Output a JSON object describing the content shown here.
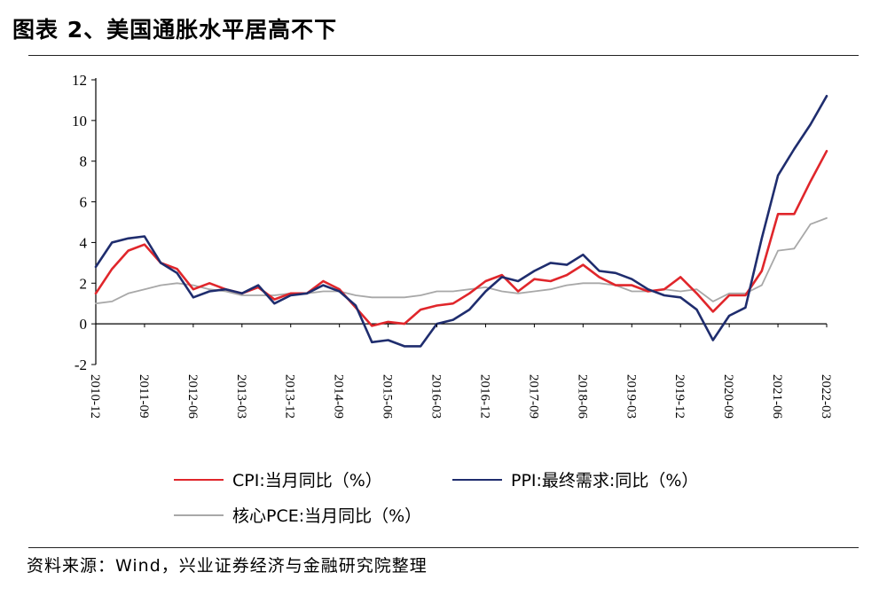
{
  "header": {
    "title": "图表 2、美国通胀水平居高不下"
  },
  "footer": {
    "source": "资料来源：Wind，兴业证券经济与金融研究院整理"
  },
  "chart_data": {
    "type": "line",
    "title": "图表 2、美国通胀水平居高不下",
    "xlabel": "",
    "ylabel": "",
    "ylim": [
      -2,
      12
    ],
    "yticks": [
      -2,
      0,
      2,
      4,
      6,
      8,
      10,
      12
    ],
    "x_start": "2010-12",
    "x_end": "2022-03",
    "x_tick_labels": [
      "2010-12",
      "2011-09",
      "2012-06",
      "2013-03",
      "2013-12",
      "2014-09",
      "2015-06",
      "2016-03",
      "2016-12",
      "2017-09",
      "2018-06",
      "2019-03",
      "2019-12",
      "2020-09",
      "2021-06",
      "2022-03"
    ],
    "legend_position": "bottom",
    "colors": {
      "CPI": "#e0262b",
      "PPI": "#1f2d6e",
      "PCE": "#a8a8a8"
    },
    "series": [
      {
        "name": "CPI:当月同比（%）",
        "key": "CPI",
        "points": [
          [
            "2010-12",
            1.5
          ],
          [
            "2011-03",
            2.7
          ],
          [
            "2011-06",
            3.6
          ],
          [
            "2011-09",
            3.9
          ],
          [
            "2011-12",
            3.0
          ],
          [
            "2012-03",
            2.7
          ],
          [
            "2012-06",
            1.7
          ],
          [
            "2012-09",
            2.0
          ],
          [
            "2012-12",
            1.7
          ],
          [
            "2013-03",
            1.5
          ],
          [
            "2013-06",
            1.8
          ],
          [
            "2013-09",
            1.2
          ],
          [
            "2013-12",
            1.5
          ],
          [
            "2014-03",
            1.5
          ],
          [
            "2014-06",
            2.1
          ],
          [
            "2014-09",
            1.7
          ],
          [
            "2014-12",
            0.8
          ],
          [
            "2015-03",
            -0.1
          ],
          [
            "2015-06",
            0.1
          ],
          [
            "2015-09",
            0.0
          ],
          [
            "2015-12",
            0.7
          ],
          [
            "2016-03",
            0.9
          ],
          [
            "2016-06",
            1.0
          ],
          [
            "2016-09",
            1.5
          ],
          [
            "2016-12",
            2.1
          ],
          [
            "2017-03",
            2.4
          ],
          [
            "2017-06",
            1.6
          ],
          [
            "2017-09",
            2.2
          ],
          [
            "2017-12",
            2.1
          ],
          [
            "2018-03",
            2.4
          ],
          [
            "2018-06",
            2.9
          ],
          [
            "2018-09",
            2.3
          ],
          [
            "2018-12",
            1.9
          ],
          [
            "2019-03",
            1.9
          ],
          [
            "2019-06",
            1.6
          ],
          [
            "2019-09",
            1.7
          ],
          [
            "2019-12",
            2.3
          ],
          [
            "2020-03",
            1.5
          ],
          [
            "2020-06",
            0.6
          ],
          [
            "2020-09",
            1.4
          ],
          [
            "2020-12",
            1.4
          ],
          [
            "2021-03",
            2.6
          ],
          [
            "2021-06",
            5.4
          ],
          [
            "2021-09",
            5.4
          ],
          [
            "2021-12",
            7.0
          ],
          [
            "2022-03",
            8.5
          ]
        ]
      },
      {
        "name": "PPI:最终需求:同比（%）",
        "key": "PPI",
        "points": [
          [
            "2010-12",
            2.8
          ],
          [
            "2011-03",
            4.0
          ],
          [
            "2011-06",
            4.2
          ],
          [
            "2011-09",
            4.3
          ],
          [
            "2011-12",
            3.0
          ],
          [
            "2012-03",
            2.5
          ],
          [
            "2012-06",
            1.3
          ],
          [
            "2012-09",
            1.6
          ],
          [
            "2012-12",
            1.7
          ],
          [
            "2013-03",
            1.5
          ],
          [
            "2013-06",
            1.9
          ],
          [
            "2013-09",
            1.0
          ],
          [
            "2013-12",
            1.4
          ],
          [
            "2014-03",
            1.5
          ],
          [
            "2014-06",
            1.9
          ],
          [
            "2014-09",
            1.6
          ],
          [
            "2014-12",
            0.9
          ],
          [
            "2015-03",
            -0.9
          ],
          [
            "2015-06",
            -0.8
          ],
          [
            "2015-09",
            -1.1
          ],
          [
            "2015-12",
            -1.1
          ],
          [
            "2016-03",
            0.0
          ],
          [
            "2016-06",
            0.2
          ],
          [
            "2016-09",
            0.7
          ],
          [
            "2016-12",
            1.6
          ],
          [
            "2017-03",
            2.3
          ],
          [
            "2017-06",
            2.1
          ],
          [
            "2017-09",
            2.6
          ],
          [
            "2017-12",
            3.0
          ],
          [
            "2018-03",
            2.9
          ],
          [
            "2018-06",
            3.4
          ],
          [
            "2018-09",
            2.6
          ],
          [
            "2018-12",
            2.5
          ],
          [
            "2019-03",
            2.2
          ],
          [
            "2019-06",
            1.7
          ],
          [
            "2019-09",
            1.4
          ],
          [
            "2019-12",
            1.3
          ],
          [
            "2020-03",
            0.7
          ],
          [
            "2020-06",
            -0.8
          ],
          [
            "2020-09",
            0.4
          ],
          [
            "2020-12",
            0.8
          ],
          [
            "2021-03",
            4.2
          ],
          [
            "2021-06",
            7.3
          ],
          [
            "2021-09",
            8.6
          ],
          [
            "2021-12",
            9.8
          ],
          [
            "2022-03",
            11.2
          ]
        ]
      },
      {
        "name": "核心PCE:当月同比（%）",
        "key": "PCE",
        "points": [
          [
            "2010-12",
            1.0
          ],
          [
            "2011-03",
            1.1
          ],
          [
            "2011-06",
            1.5
          ],
          [
            "2011-09",
            1.7
          ],
          [
            "2011-12",
            1.9
          ],
          [
            "2012-03",
            2.0
          ],
          [
            "2012-06",
            1.9
          ],
          [
            "2012-09",
            1.7
          ],
          [
            "2012-12",
            1.6
          ],
          [
            "2013-03",
            1.4
          ],
          [
            "2013-06",
            1.4
          ],
          [
            "2013-09",
            1.4
          ],
          [
            "2013-12",
            1.5
          ],
          [
            "2014-03",
            1.5
          ],
          [
            "2014-06",
            1.6
          ],
          [
            "2014-09",
            1.6
          ],
          [
            "2014-12",
            1.4
          ],
          [
            "2015-03",
            1.3
          ],
          [
            "2015-06",
            1.3
          ],
          [
            "2015-09",
            1.3
          ],
          [
            "2015-12",
            1.4
          ],
          [
            "2016-03",
            1.6
          ],
          [
            "2016-06",
            1.6
          ],
          [
            "2016-09",
            1.7
          ],
          [
            "2016-12",
            1.8
          ],
          [
            "2017-03",
            1.6
          ],
          [
            "2017-06",
            1.5
          ],
          [
            "2017-09",
            1.6
          ],
          [
            "2017-12",
            1.7
          ],
          [
            "2018-03",
            1.9
          ],
          [
            "2018-06",
            2.0
          ],
          [
            "2018-09",
            2.0
          ],
          [
            "2018-12",
            1.9
          ],
          [
            "2019-03",
            1.6
          ],
          [
            "2019-06",
            1.6
          ],
          [
            "2019-09",
            1.7
          ],
          [
            "2019-12",
            1.6
          ],
          [
            "2020-03",
            1.7
          ],
          [
            "2020-06",
            1.1
          ],
          [
            "2020-09",
            1.5
          ],
          [
            "2020-12",
            1.5
          ],
          [
            "2021-03",
            1.9
          ],
          [
            "2021-06",
            3.6
          ],
          [
            "2021-09",
            3.7
          ],
          [
            "2021-12",
            4.9
          ],
          [
            "2022-03",
            5.2
          ]
        ]
      }
    ]
  }
}
